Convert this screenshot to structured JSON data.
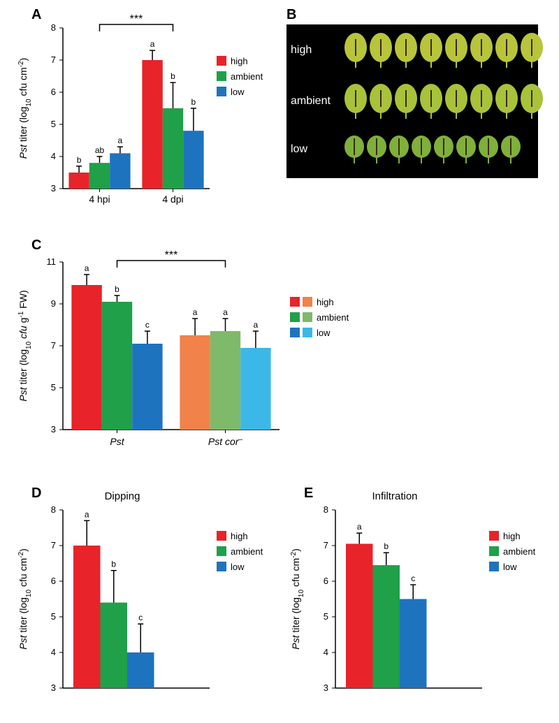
{
  "panelA": {
    "label": "A",
    "type": "bar",
    "ylabel": "Pst titer  (log₁₀ cfu cm⁻²)",
    "ylim": [
      3,
      8
    ],
    "ytick_step": 1,
    "xgroups": [
      "4 hpi",
      "4 dpi"
    ],
    "series": [
      {
        "name": "high",
        "color": "#e8232a",
        "values": [
          3.5,
          7.0
        ],
        "errors": [
          0.2,
          0.3
        ],
        "sigs": [
          "b",
          "a"
        ]
      },
      {
        "name": "ambient",
        "color": "#1fa049",
        "values": [
          3.8,
          5.5
        ],
        "errors": [
          0.2,
          0.8
        ],
        "sigs": [
          "ab",
          "b"
        ]
      },
      {
        "name": "low",
        "color": "#1e73be",
        "values": [
          4.1,
          4.8
        ],
        "errors": [
          0.2,
          0.7
        ],
        "sigs": [
          "a",
          "b"
        ]
      }
    ],
    "sig_bracket": {
      "from_group": 0,
      "to_group": 1,
      "stars": "***"
    },
    "bar_width": 0.28,
    "label_fontsize": 14,
    "tick_fontsize": 13
  },
  "panelB": {
    "label": "B",
    "rows": [
      "high",
      "ambient",
      "low"
    ],
    "leaf_count": 8,
    "leaf_colors": {
      "high": "#b8c43a",
      "ambient": "#a8c23a",
      "low": "#7fb03a"
    },
    "background": "#000000"
  },
  "panelC": {
    "label": "C",
    "type": "bar",
    "ylabel": "Pst titer (log₁₀ cfu g⁻¹ FW)",
    "ylim": [
      3,
      11
    ],
    "ytick_step": 2,
    "xgroups": [
      "Pst",
      "Pst cor⁻"
    ],
    "series_pst": [
      {
        "name": "high",
        "color": "#e8232a",
        "value": 9.9,
        "error": 0.5,
        "sig": "a"
      },
      {
        "name": "ambient",
        "color": "#1fa049",
        "value": 9.1,
        "error": 0.3,
        "sig": "b"
      },
      {
        "name": "low",
        "color": "#1e73be",
        "value": 7.1,
        "error": 0.6,
        "sig": "c"
      }
    ],
    "series_cor": [
      {
        "name": "high",
        "color": "#f0824a",
        "value": 7.5,
        "error": 0.8,
        "sig": "a"
      },
      {
        "name": "ambient",
        "color": "#7fb96a",
        "value": 7.7,
        "error": 0.6,
        "sig": "a"
      },
      {
        "name": "low",
        "color": "#3bb8e8",
        "value": 6.9,
        "error": 0.8,
        "sig": "a"
      }
    ],
    "legend": [
      {
        "color1": "#e8232a",
        "color2": "#f0824a",
        "label": "high"
      },
      {
        "color1": "#1fa049",
        "color2": "#7fb96a",
        "label": "ambient"
      },
      {
        "color1": "#1e73be",
        "color2": "#3bb8e8",
        "label": "low"
      }
    ],
    "sig_bracket": {
      "stars": "***"
    },
    "bar_width": 0.28
  },
  "panelD": {
    "label": "D",
    "title": "Dipping",
    "type": "bar",
    "ylabel": "Pst titer  (log₁₀ cfu cm⁻²)",
    "ylim": [
      3,
      8
    ],
    "ytick_step": 1,
    "series": [
      {
        "name": "high",
        "color": "#e8232a",
        "value": 7.0,
        "error": 0.7,
        "sig": "a"
      },
      {
        "name": "ambient",
        "color": "#1fa049",
        "value": 5.4,
        "error": 0.9,
        "sig": "b"
      },
      {
        "name": "low",
        "color": "#1e73be",
        "value": 4.0,
        "error": 0.8,
        "sig": "c"
      }
    ],
    "bar_width": 0.5
  },
  "panelE": {
    "label": "E",
    "title": "Infiltration",
    "type": "bar",
    "ylabel": "Pst titer  (log₁₀ cfu cm⁻²)",
    "ylim": [
      3,
      8
    ],
    "ytick_step": 1,
    "series": [
      {
        "name": "high",
        "color": "#e8232a",
        "value": 7.05,
        "error": 0.3,
        "sig": "a"
      },
      {
        "name": "ambient",
        "color": "#1fa049",
        "value": 6.45,
        "error": 0.35,
        "sig": "b"
      },
      {
        "name": "low",
        "color": "#1e73be",
        "value": 5.5,
        "error": 0.4,
        "sig": "c"
      }
    ],
    "bar_width": 0.5
  }
}
